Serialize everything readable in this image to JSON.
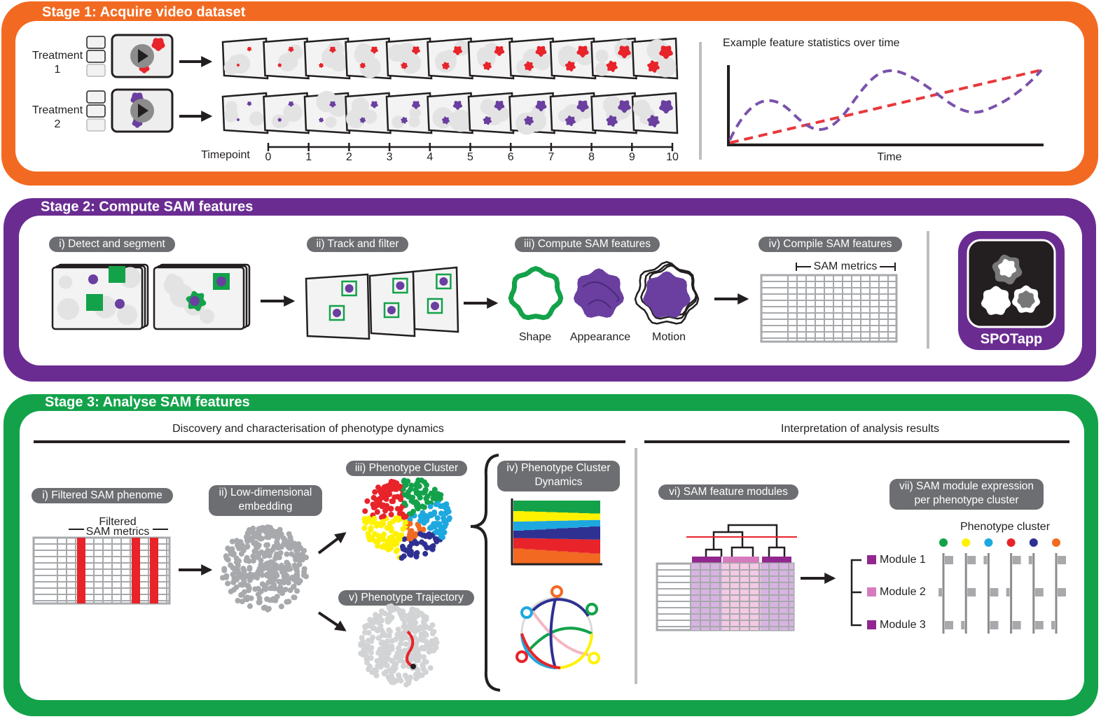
{
  "stage1": {
    "title": "Stage 1: Acquire video dataset",
    "treatments": [
      [
        "Treatment",
        "1"
      ],
      [
        "Treatment",
        "2"
      ]
    ],
    "timepoint_label": "Timepoint",
    "timepoints": [
      0,
      1,
      2,
      3,
      4,
      5,
      6,
      7,
      8,
      9,
      10
    ],
    "chart_title": "Example feature statistics over time",
    "chart_x_label": "Time"
  },
  "stage2": {
    "title": "Stage 2: Compute SAM features",
    "steps": [
      "i) Detect and segment",
      "ii) Track and filter",
      "iii) Compute SAM features",
      "iv) Compile SAM features"
    ],
    "feature_types": [
      "Shape",
      "Appearance",
      "Motion"
    ],
    "table_label": "SAM metrics",
    "app_name": "SPOTapp"
  },
  "stage3": {
    "title": "Stage 3: Analyse SAM features",
    "sections": [
      "Discovery and characterisation of phenotype dynamics",
      "Interpretation of analysis results"
    ],
    "steps": [
      [
        "i) Filtered SAM phenome"
      ],
      [
        "ii) Low-dimensional",
        "embedding"
      ],
      [
        "iii) Phenotype Cluster"
      ],
      [
        "iv) Phenotype Cluster",
        "Dynamics"
      ],
      [
        "v) Phenotype Trajectory"
      ],
      [
        "vi) SAM feature modules"
      ],
      [
        "vii) SAM module expression",
        "per phenotype cluster"
      ]
    ],
    "table_label": [
      "Filtered",
      "SAM metrics"
    ],
    "cluster_label": "Phenotype cluster",
    "modules": [
      "Module 1",
      "Module 2",
      "Module 3"
    ]
  }
}
